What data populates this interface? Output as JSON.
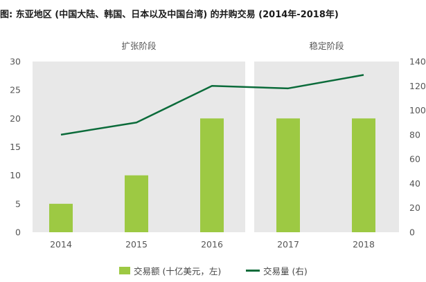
{
  "chart_data": {
    "type": "bar+line",
    "title": "图: 东亚地区 (中国大陆、韩国、日本以及中国台湾) 的并购交易 (2014年-2018年)",
    "categories": [
      "2014",
      "2015",
      "2016",
      "2017",
      "2018"
    ],
    "phases": [
      {
        "label": "扩张阶段",
        "categories": [
          "2014",
          "2015",
          "2016"
        ]
      },
      {
        "label": "稳定阶段",
        "categories": [
          "2017",
          "2018"
        ]
      }
    ],
    "series": [
      {
        "name": "交易额 (十亿美元，左)",
        "type": "bar",
        "axis": "left",
        "values": [
          5,
          10,
          20,
          20,
          20
        ],
        "color": "#9dc943"
      },
      {
        "name": "交易量 (右)",
        "type": "line",
        "axis": "right",
        "values": [
          80,
          90,
          120,
          118,
          129
        ],
        "color": "#0b6b3a"
      }
    ],
    "left_axis": {
      "ylim": [
        0,
        30
      ],
      "ticks": [
        "0",
        "5",
        "10",
        "15",
        "20",
        "25",
        "30"
      ]
    },
    "right_axis": {
      "ylim": [
        0,
        140
      ],
      "ticks": [
        "0",
        "20",
        "40",
        "60",
        "80",
        "100",
        "120",
        "140"
      ]
    },
    "grid": false,
    "legend_position": "bottom"
  }
}
